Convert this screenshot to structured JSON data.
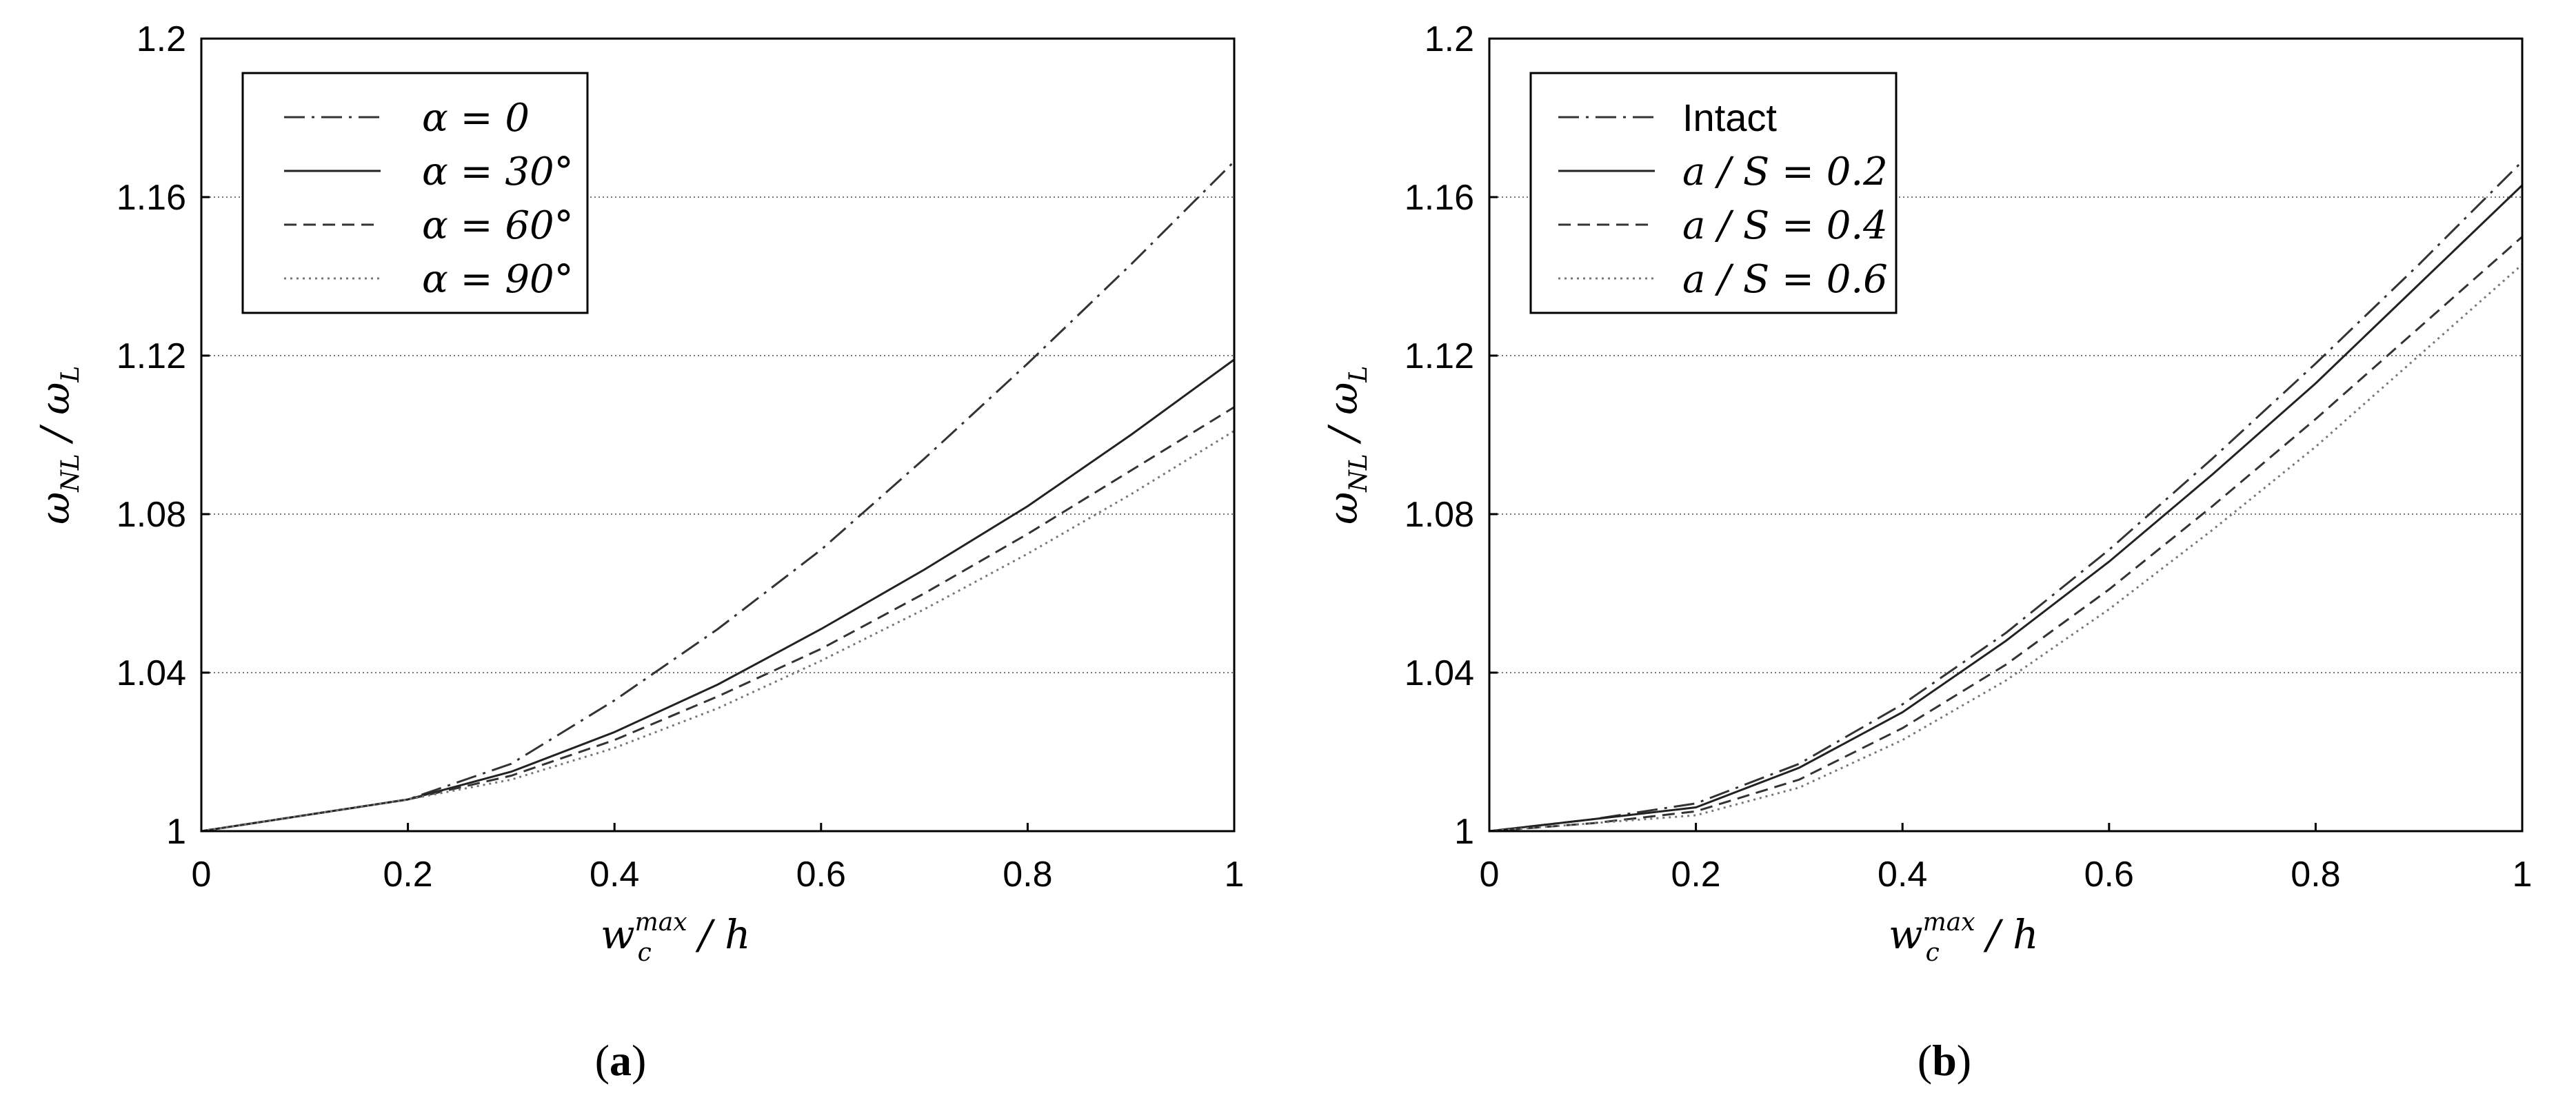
{
  "chart_data": [
    {
      "type": "line",
      "caption": {
        "open": "(",
        "letter": "a",
        "close": ")"
      },
      "xlabel": {
        "main": "w",
        "sup": "max",
        "sub": "c",
        "rest": " / h"
      },
      "ylabel": {
        "main1": "ω",
        "sub1": "NL",
        "slash": " / ",
        "main2": "ω",
        "sub2": "L"
      },
      "xlim": [
        0,
        1
      ],
      "ylim": [
        1,
        1.2
      ],
      "xticks": [
        "0",
        "0.2",
        "0.4",
        "0.6",
        "0.8",
        "1"
      ],
      "yticks": [
        "1",
        "1.04",
        "1.08",
        "1.12",
        "1.16",
        "1.2"
      ],
      "grid": "horizontal",
      "legend_position": "top-left",
      "series": [
        {
          "name": "α = 0",
          "style": "dashdot",
          "color": "#333333",
          "x": [
            0,
            0.1,
            0.2,
            0.3,
            0.4,
            0.5,
            0.6,
            0.7,
            0.8,
            0.9,
            1.0
          ],
          "y": [
            1.0,
            1.004,
            1.008,
            1.017,
            1.033,
            1.051,
            1.071,
            1.094,
            1.118,
            1.143,
            1.169
          ]
        },
        {
          "name": "α = 30°",
          "style": "solid",
          "color": "#222222",
          "x": [
            0,
            0.1,
            0.2,
            0.3,
            0.4,
            0.5,
            0.6,
            0.7,
            0.8,
            0.9,
            1.0
          ],
          "y": [
            1.0,
            1.004,
            1.008,
            1.015,
            1.025,
            1.037,
            1.051,
            1.066,
            1.082,
            1.1,
            1.119
          ]
        },
        {
          "name": "α = 60°",
          "style": "dashed",
          "color": "#333333",
          "x": [
            0,
            0.1,
            0.2,
            0.3,
            0.4,
            0.5,
            0.6,
            0.7,
            0.8,
            0.9,
            1.0
          ],
          "y": [
            1.0,
            1.004,
            1.008,
            1.014,
            1.023,
            1.034,
            1.046,
            1.06,
            1.075,
            1.091,
            1.107
          ]
        },
        {
          "name": "α = 90°",
          "style": "dotted",
          "color": "#777777",
          "x": [
            0,
            0.1,
            0.2,
            0.3,
            0.4,
            0.5,
            0.6,
            0.7,
            0.8,
            0.9,
            1.0
          ],
          "y": [
            1.0,
            1.004,
            1.008,
            1.013,
            1.021,
            1.031,
            1.043,
            1.056,
            1.07,
            1.085,
            1.101
          ]
        }
      ]
    },
    {
      "type": "line",
      "caption": {
        "open": "(",
        "letter": "b",
        "close": ")"
      },
      "xlabel": {
        "main": "w",
        "sup": "max",
        "sub": "c",
        "rest": " / h"
      },
      "ylabel": {
        "main1": "ω",
        "sub1": "NL",
        "slash": " / ",
        "main2": "ω",
        "sub2": "L"
      },
      "xlim": [
        0,
        1
      ],
      "ylim": [
        1,
        1.2
      ],
      "xticks": [
        "0",
        "0.2",
        "0.4",
        "0.6",
        "0.8",
        "1"
      ],
      "yticks": [
        "1",
        "1.04",
        "1.08",
        "1.12",
        "1.16",
        "1.2"
      ],
      "grid": "horizontal",
      "legend_position": "top-left",
      "series": [
        {
          "name": "Intact",
          "style": "dashdot",
          "color": "#333333",
          "x": [
            0,
            0.1,
            0.2,
            0.3,
            0.4,
            0.5,
            0.6,
            0.7,
            0.8,
            0.9,
            1.0
          ],
          "y": [
            1.0,
            1.003,
            1.007,
            1.017,
            1.032,
            1.05,
            1.071,
            1.094,
            1.118,
            1.143,
            1.169
          ]
        },
        {
          "name": "a / S = 0.2",
          "style": "solid",
          "color": "#222222",
          "x": [
            0,
            0.1,
            0.2,
            0.3,
            0.4,
            0.5,
            0.6,
            0.7,
            0.8,
            0.9,
            1.0
          ],
          "y": [
            1.0,
            1.003,
            1.006,
            1.016,
            1.03,
            1.048,
            1.068,
            1.09,
            1.113,
            1.138,
            1.163
          ]
        },
        {
          "name": "a / S = 0.4",
          "style": "dashed",
          "color": "#333333",
          "x": [
            0,
            0.1,
            0.2,
            0.3,
            0.4,
            0.5,
            0.6,
            0.7,
            0.8,
            0.9,
            1.0
          ],
          "y": [
            1.0,
            1.002,
            1.005,
            1.013,
            1.026,
            1.042,
            1.061,
            1.082,
            1.104,
            1.127,
            1.15
          ]
        },
        {
          "name": "a / S = 0.6",
          "style": "dotted",
          "color": "#777777",
          "x": [
            0,
            0.1,
            0.2,
            0.3,
            0.4,
            0.5,
            0.6,
            0.7,
            0.8,
            0.9,
            1.0
          ],
          "y": [
            1.0,
            1.002,
            1.004,
            1.011,
            1.023,
            1.038,
            1.056,
            1.076,
            1.097,
            1.12,
            1.143
          ]
        }
      ]
    }
  ]
}
